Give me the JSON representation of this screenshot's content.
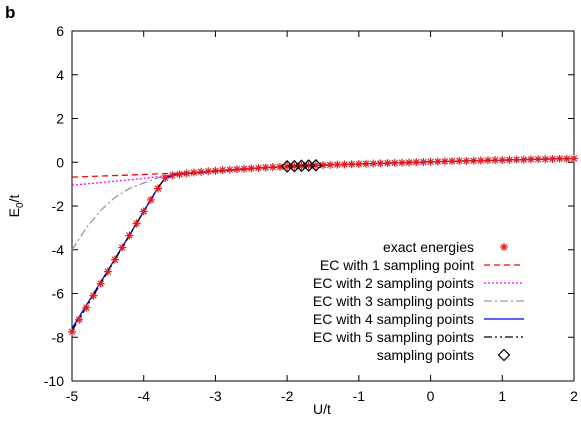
{
  "panel_label": "b",
  "chart_data": {
    "type": "line",
    "xlabel": "U/t",
    "ylabel": "E0/t",
    "xlim": [
      -5,
      2
    ],
    "ylim": [
      -10,
      6
    ],
    "xticks": [
      -5,
      -4,
      -3,
      -2,
      -1,
      0,
      1,
      2
    ],
    "yticks": [
      -10,
      -8,
      -6,
      -4,
      -2,
      0,
      2,
      4,
      6
    ],
    "xtick_labels": [
      "-5",
      "-4",
      "-3",
      "-2",
      "-1",
      "0",
      "1",
      "2"
    ],
    "ytick_labels": [
      "-10",
      "-8",
      "-6",
      "-4",
      "-2",
      "0",
      "2",
      "4",
      "6"
    ],
    "grid": false,
    "legend_position": "bottom-right",
    "series": [
      {
        "name": "exact energies",
        "style": "marker",
        "marker": "asterisk",
        "color": "#e41a1c",
        "x": [
          -5.0,
          -4.9,
          -4.8,
          -4.7,
          -4.6,
          -4.5,
          -4.4,
          -4.3,
          -4.2,
          -4.1,
          -4.0,
          -3.9,
          -3.8,
          -3.7,
          -3.6,
          -3.5,
          -3.4,
          -3.3,
          -3.2,
          -3.1,
          -3.0,
          -2.9,
          -2.8,
          -2.7,
          -2.6,
          -2.5,
          -2.4,
          -2.3,
          -2.2,
          -2.1,
          -2.0,
          -1.9,
          -1.8,
          -1.7,
          -1.6,
          -1.5,
          -1.4,
          -1.3,
          -1.2,
          -1.1,
          -1.0,
          -0.9,
          -0.8,
          -0.7,
          -0.6,
          -0.5,
          -0.4,
          -0.3,
          -0.2,
          -0.1,
          0.0,
          0.1,
          0.2,
          0.3,
          0.4,
          0.5,
          0.6,
          0.7,
          0.8,
          0.9,
          1.0,
          1.1,
          1.2,
          1.3,
          1.4,
          1.5,
          1.6,
          1.7,
          1.8,
          1.9,
          2.0
        ],
        "y": [
          -7.75,
          -7.2,
          -6.65,
          -6.1,
          -5.55,
          -5.0,
          -4.45,
          -3.9,
          -3.35,
          -2.8,
          -2.25,
          -1.72,
          -1.2,
          -0.72,
          -0.6,
          -0.55,
          -0.51,
          -0.47,
          -0.44,
          -0.41,
          -0.39,
          -0.36,
          -0.34,
          -0.32,
          -0.3,
          -0.28,
          -0.26,
          -0.24,
          -0.22,
          -0.21,
          -0.19,
          -0.18,
          -0.16,
          -0.15,
          -0.14,
          -0.13,
          -0.12,
          -0.11,
          -0.1,
          -0.09,
          -0.08,
          -0.07,
          -0.06,
          -0.05,
          -0.04,
          -0.03,
          -0.02,
          -0.01,
          0.0,
          0.01,
          0.02,
          0.03,
          0.04,
          0.05,
          0.06,
          0.06,
          0.07,
          0.08,
          0.09,
          0.1,
          0.1,
          0.11,
          0.12,
          0.12,
          0.13,
          0.14,
          0.14,
          0.15,
          0.16,
          0.16,
          0.17
        ]
      },
      {
        "name": "EC with 1 sampling point",
        "style": "dashed",
        "color": "#ff0000",
        "x": [
          -5.0,
          -4.5,
          -4.0,
          -3.7,
          -3.5,
          -3.0,
          -2.5,
          -2.0,
          -1.5,
          -1.0,
          -0.5,
          0.0,
          0.5,
          1.0,
          1.5,
          2.0
        ],
        "y": [
          -0.68,
          -0.62,
          -0.56,
          -0.52,
          -0.5,
          -0.42,
          -0.3,
          -0.19,
          -0.13,
          -0.08,
          -0.03,
          0.02,
          0.06,
          0.1,
          0.14,
          0.17
        ]
      },
      {
        "name": "EC with 2 sampling points",
        "style": "dotted",
        "color": "#ff00ff",
        "x": [
          -5.0,
          -4.5,
          -4.0,
          -3.7,
          -3.5,
          -3.0,
          -2.5,
          -2.0,
          -1.5,
          -1.0,
          -0.5,
          0.0,
          0.5,
          1.0,
          1.5,
          2.0
        ],
        "y": [
          -1.05,
          -0.9,
          -0.74,
          -0.62,
          -0.55,
          -0.42,
          -0.3,
          -0.19,
          -0.13,
          -0.08,
          -0.03,
          0.02,
          0.06,
          0.1,
          0.14,
          0.17
        ]
      },
      {
        "name": "EC with 3 sampling points",
        "style": "dashdot",
        "color": "#999999",
        "x": [
          -5.0,
          -4.8,
          -4.6,
          -4.4,
          -4.2,
          -4.0,
          -3.8,
          -3.6,
          -3.4,
          -3.0,
          -2.5,
          -2.0,
          -1.5,
          -1.0,
          -0.5,
          0.0,
          0.5,
          1.0,
          1.5,
          2.0
        ],
        "y": [
          -4.0,
          -3.0,
          -2.2,
          -1.6,
          -1.2,
          -0.95,
          -0.7,
          -0.56,
          -0.5,
          -0.41,
          -0.29,
          -0.19,
          -0.13,
          -0.08,
          -0.03,
          0.02,
          0.06,
          0.1,
          0.14,
          0.17
        ]
      },
      {
        "name": "EC with 4 sampling points",
        "style": "solid",
        "color": "#0000ff",
        "x": [
          -5.0,
          -4.5,
          -4.0,
          -3.8,
          -3.7,
          -3.6,
          -3.5,
          -3.0,
          -2.5,
          -2.0,
          -1.5,
          -1.0,
          -0.5,
          0.0,
          0.5,
          1.0,
          1.5,
          2.0
        ],
        "y": [
          -7.6,
          -4.95,
          -2.25,
          -1.15,
          -0.72,
          -0.6,
          -0.55,
          -0.39,
          -0.28,
          -0.19,
          -0.13,
          -0.08,
          -0.03,
          0.02,
          0.06,
          0.1,
          0.14,
          0.17
        ]
      },
      {
        "name": "EC with 5 sampling points",
        "style": "dashdotdot",
        "color": "#000000",
        "x": [
          -5.0,
          -4.5,
          -4.0,
          -3.8,
          -3.7,
          -3.6,
          -3.5,
          -3.0,
          -2.5,
          -2.0,
          -1.5,
          -1.0,
          -0.5,
          0.0,
          0.5,
          1.0,
          1.5,
          2.0
        ],
        "y": [
          -7.7,
          -5.0,
          -2.25,
          -1.15,
          -0.72,
          -0.6,
          -0.55,
          -0.39,
          -0.28,
          -0.19,
          -0.13,
          -0.08,
          -0.03,
          0.02,
          0.06,
          0.1,
          0.14,
          0.17
        ]
      },
      {
        "name": "sampling points",
        "style": "marker",
        "marker": "diamond",
        "color": "#000000",
        "x": [
          -2.0,
          -1.9,
          -1.8,
          -1.7,
          -1.6
        ],
        "y": [
          -0.19,
          -0.18,
          -0.16,
          -0.15,
          -0.14
        ]
      }
    ]
  }
}
